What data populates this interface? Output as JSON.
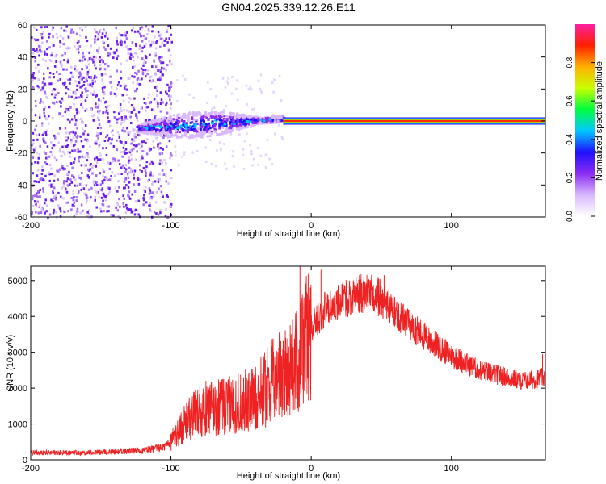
{
  "title": "GN04.2025.339.12.26.E11",
  "chart_data": [
    {
      "type": "heatmap",
      "name": "spectrogram",
      "xlabel": "Height of straight line (km)",
      "ylabel": "Frequency (Hz)",
      "xlim": [
        -200,
        167
      ],
      "ylim": [
        -60,
        60
      ],
      "xticks": [
        -200,
        -100,
        0,
        100
      ],
      "yticks": [
        -60,
        -40,
        -20,
        0,
        20,
        40,
        60
      ],
      "xtick_labels": [
        "-200",
        "-100",
        "0",
        "100"
      ],
      "ytick_labels": [
        "-60",
        "-40",
        "-20",
        "0",
        "20",
        "40",
        "60"
      ],
      "colorbar": {
        "label": "Normalized spectral amplitude",
        "range": [
          0.0,
          1.0
        ],
        "ticks": [
          0.0,
          0.2,
          0.4,
          0.6,
          0.8
        ],
        "tick_labels": [
          "0.0",
          "0.2",
          "0.4",
          "0.6",
          "0.8"
        ],
        "colors": [
          "#ffffff",
          "#d8b8ff",
          "#8c2cf0",
          "#2010ff",
          "#00c8ff",
          "#00ff40",
          "#c8ff00",
          "#ffb000",
          "#ff2000",
          "#ff20a0"
        ]
      },
      "regions": [
        {
          "description": "broadband noise",
          "x_range": [
            -200,
            -100
          ],
          "freq_range": [
            -60,
            60
          ],
          "amplitude": 0.1
        },
        {
          "description": "signal band",
          "x_range": [
            -125,
            -20
          ],
          "freq_center_start": -4,
          "freq_center_end": 2,
          "amplitude_peak": 0.4
        },
        {
          "description": "strong line at 0 Hz",
          "x_range": [
            -20,
            167
          ],
          "freq": 0,
          "amplitude": 0.9
        }
      ]
    },
    {
      "type": "line",
      "name": "snr",
      "xlabel": "Height of straight line (km)",
      "ylabel": "SNR (10 * v/v)",
      "xlim": [
        -200,
        167
      ],
      "ylim": [
        0,
        5400
      ],
      "xticks": [
        -200,
        -100,
        0,
        100
      ],
      "yticks": [
        0,
        1000,
        2000,
        3000,
        4000,
        5000
      ],
      "xtick_labels": [
        "-200",
        "-100",
        "0",
        "100"
      ],
      "ytick_labels": [
        "0",
        "1000",
        "2000",
        "3000",
        "4000",
        "5000"
      ],
      "color": "#ee2222",
      "series": [
        {
          "name": "SNR",
          "x": [
            -200,
            -180,
            -150,
            -120,
            -105,
            -100,
            -90,
            -80,
            -60,
            -40,
            -30,
            -20,
            -15,
            -10,
            -5,
            0,
            10,
            20,
            30,
            40,
            50,
            60,
            70,
            80,
            100,
            120,
            140,
            150,
            160,
            167
          ],
          "y": [
            200,
            200,
            210,
            260,
            350,
            550,
            1000,
            1400,
            1500,
            1700,
            2100,
            2500,
            2600,
            2700,
            3200,
            3700,
            4200,
            4400,
            4600,
            4650,
            4500,
            4100,
            3800,
            3450,
            2900,
            2500,
            2300,
            2200,
            2250,
            2300
          ]
        }
      ],
      "spikes": [
        {
          "x": -8,
          "y": 5400
        },
        {
          "x": 7,
          "y": 5300
        },
        {
          "x": 52,
          "y": 5150
        },
        {
          "x": 165,
          "y": 2950
        }
      ],
      "noise_amplitude": "large fluctuations between x=-100 and x=0"
    }
  ]
}
